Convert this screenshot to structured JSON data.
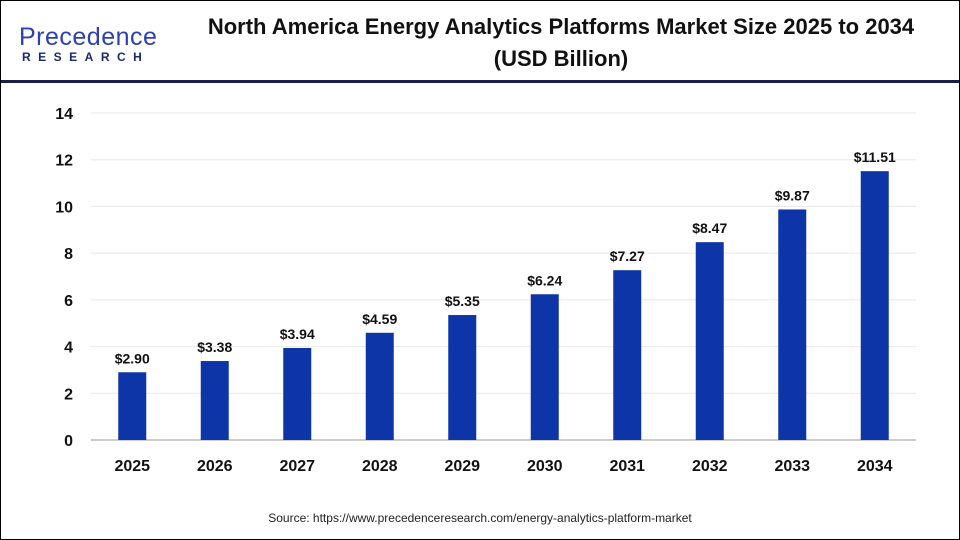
{
  "header": {
    "logo_top": "Precedence",
    "logo_bottom": "RESEARCH",
    "title": "North America Energy Analytics Platforms Market Size 2025 to 2034 (USD Billion)"
  },
  "chart_data": {
    "type": "bar",
    "title": "North America Energy Analytics Platforms Market Size 2025 to 2034 (USD Billion)",
    "categories": [
      "2025",
      "2026",
      "2027",
      "2028",
      "2029",
      "2030",
      "2031",
      "2032",
      "2033",
      "2034"
    ],
    "values": [
      2.9,
      3.38,
      3.94,
      4.59,
      5.35,
      6.24,
      7.27,
      8.47,
      9.87,
      11.51
    ],
    "data_labels": [
      "$2.90",
      "$3.38",
      "$3.94",
      "$4.59",
      "$5.35",
      "$6.24",
      "$7.27",
      "$8.47",
      "$9.87",
      "$11.51"
    ],
    "yticks": [
      "0",
      "2",
      "4",
      "6",
      "8",
      "10",
      "12",
      "14"
    ],
    "ylim": [
      0,
      14
    ],
    "grid": true,
    "bar_color": "#0d35a8"
  },
  "footer": {
    "source": "Source: https://www.precedenceresearch.com/energy-analytics-platform-market"
  }
}
